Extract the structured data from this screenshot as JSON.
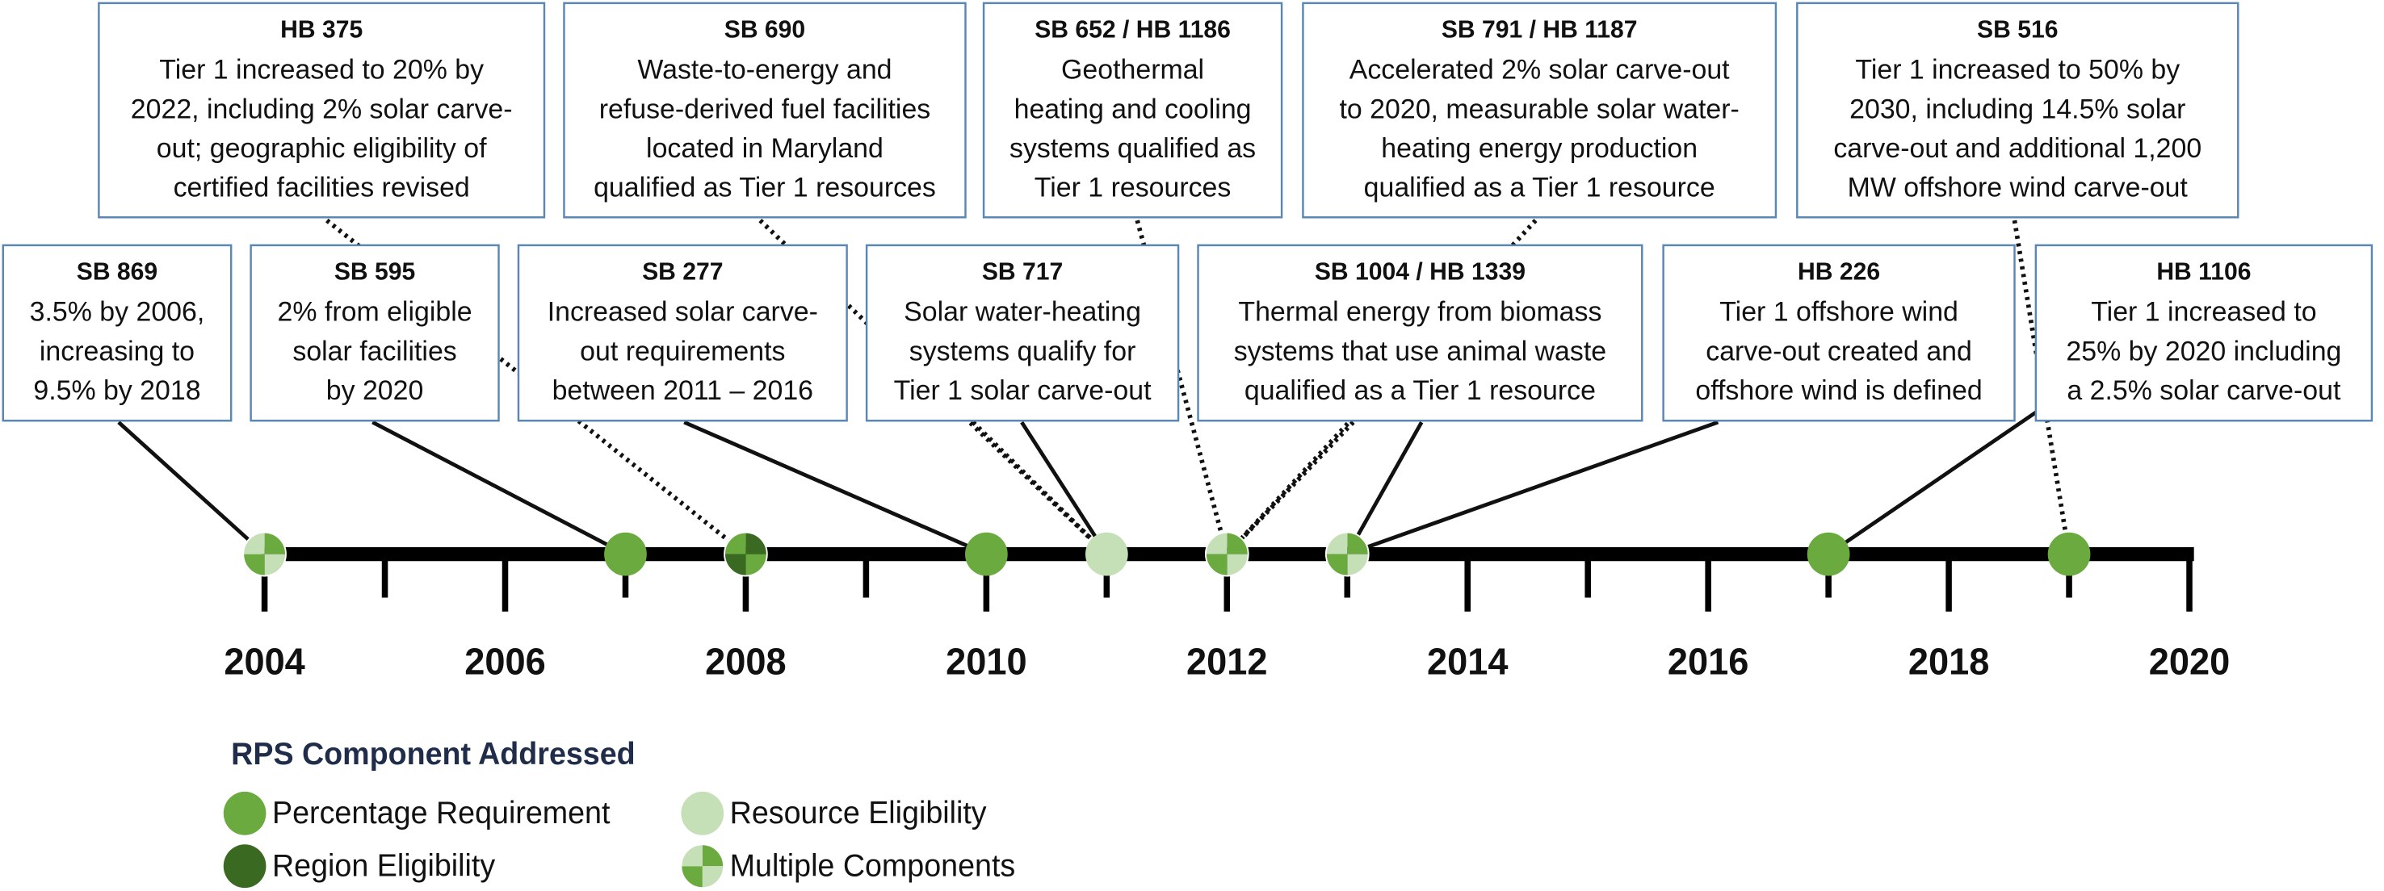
{
  "events": [
    {
      "title": "HB 375",
      "lines": [
        "Tier 1 increased to 20% by",
        "2022, including 2% solar carve-",
        "out; geographic eligibility of",
        "certified facilities revised"
      ]
    },
    {
      "title": "SB 690",
      "lines": [
        "Waste-to-energy and",
        "refuse-derived fuel facilities",
        "located in Maryland",
        "qualified as Tier 1 resources"
      ]
    },
    {
      "title": "SB 652 / HB 1186",
      "lines": [
        "Geothermal",
        "heating and cooling",
        "systems qualified as",
        "Tier 1 resources"
      ]
    },
    {
      "title": "SB 791 / HB 1187",
      "lines": [
        "Accelerated 2% solar carve-out",
        "to 2020, measurable solar water-",
        "heating energy production",
        "qualified as a Tier 1 resource"
      ]
    },
    {
      "title": "SB 516",
      "lines": [
        "Tier 1 increased to 50% by",
        "2030, including 14.5% solar",
        "carve-out and additional 1,200",
        "MW offshore wind carve-out"
      ]
    },
    {
      "title": "SB 869",
      "lines": [
        "3.5% by 2006,",
        "increasing to",
        "9.5% by 2018"
      ]
    },
    {
      "title": "SB 595",
      "lines": [
        "2% from eligible",
        "solar facilities",
        "by 2020"
      ]
    },
    {
      "title": "SB 277",
      "lines": [
        "Increased solar carve-",
        "out requirements",
        "between 2011 – 2016"
      ]
    },
    {
      "title": "SB 717",
      "lines": [
        "Solar water-heating",
        "systems qualify for",
        "Tier 1 solar carve-out"
      ]
    },
    {
      "title": "SB 1004 / HB 1339",
      "lines": [
        "Thermal energy from biomass",
        "systems that use animal waste",
        "qualified as a Tier 1 resource"
      ]
    },
    {
      "title": "HB 226",
      "lines": [
        "Tier 1 offshore wind",
        "carve-out created and",
        "offshore wind is defined"
      ]
    },
    {
      "title": "HB 1106",
      "lines": [
        "Tier 1 increased to",
        "25% by 2020 including",
        "a 2.5% solar carve-out"
      ]
    }
  ],
  "axis_labels": [
    2004,
    2006,
    2008,
    2010,
    2012,
    2014,
    2016,
    2018,
    2020
  ],
  "legend": {
    "title": "RPS Component Addressed",
    "items": [
      {
        "label": "Percentage Requirement",
        "color": "#6aaa3f"
      },
      {
        "label": "Region Eligibility",
        "color": "#3a6a22"
      },
      {
        "label": "Resource Eligibility",
        "color": "#c5dfb6"
      },
      {
        "label": "Multiple Components",
        "color": "#6aaa3f"
      }
    ]
  }
}
